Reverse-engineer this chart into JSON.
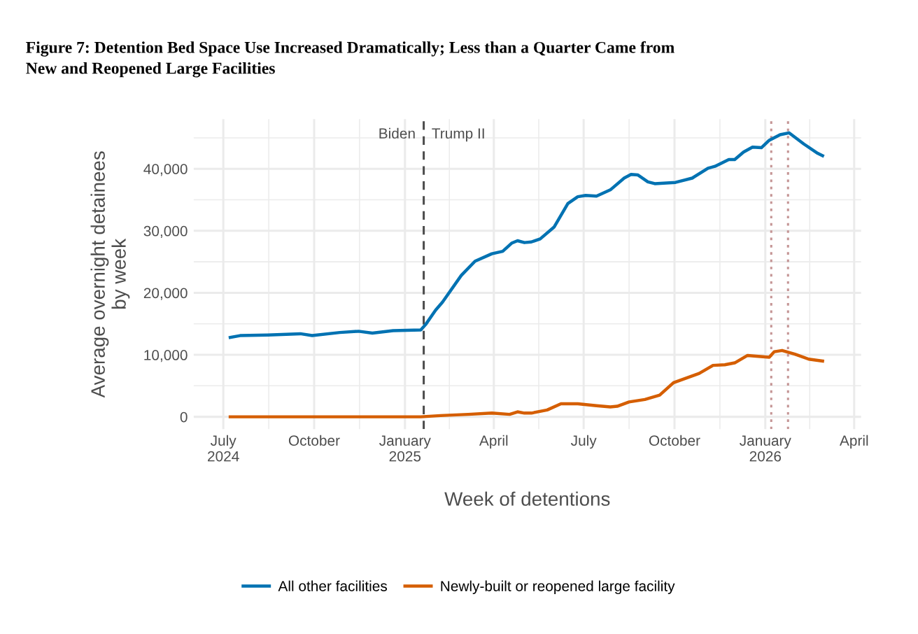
{
  "chart_data": {
    "type": "line",
    "title": "Figure 7: Detention Bed Space Use Increased Dramatically; Less than a Quarter Came from\nNew and Reopened Large Facilities",
    "xlabel": "Week of detentions",
    "ylabel": "Average overnight detainees\nby week",
    "xlim": [
      "2024-06-01",
      "2026-04-08"
    ],
    "xticks": [
      {
        "value": "2024-07-01",
        "label": "July\n2024"
      },
      {
        "value": "2024-10-01",
        "label": "October"
      },
      {
        "value": "2025-01-01",
        "label": "January\n2025"
      },
      {
        "value": "2025-04-01",
        "label": "April"
      },
      {
        "value": "2025-07-01",
        "label": "July"
      },
      {
        "value": "2025-10-01",
        "label": "October"
      },
      {
        "value": "2026-01-01",
        "label": "January\n2026"
      },
      {
        "value": "2026-04-01",
        "label": "April"
      }
    ],
    "ylim": [
      -2000,
      48000
    ],
    "yticks": [
      {
        "value": 0,
        "label": "0"
      },
      {
        "value": 10000,
        "label": "10,000"
      },
      {
        "value": 20000,
        "label": "20,000"
      },
      {
        "value": 30000,
        "label": "30,000"
      },
      {
        "value": 40000,
        "label": "40,000"
      }
    ],
    "grid": true,
    "legend": "bottom",
    "line_style": "solid",
    "marker": "none",
    "ref_lines": [
      {
        "axis": "x",
        "value": "2025-01-20",
        "color": "#4d4d4d",
        "line_style": "dashed"
      },
      {
        "axis": "x",
        "value": "2026-01-07",
        "color": "#c49494",
        "line_style": "dotted"
      },
      {
        "axis": "x",
        "value": "2026-01-24",
        "color": "#c49494",
        "line_style": "dotted"
      }
    ],
    "annotations": [
      "Biden",
      "Trump II"
    ],
    "series": [
      {
        "name": "All other facilities",
        "color": "#0072b2",
        "x": [
          "2024-07-08",
          "2024-07-18",
          "2024-08-15",
          "2024-09-17",
          "2024-09-29",
          "2024-10-27",
          "2024-11-15",
          "2024-11-29",
          "2024-12-20",
          "2025-01-17",
          "2025-01-22",
          "2025-02-01",
          "2025-02-08",
          "2025-02-27",
          "2025-03-13",
          "2025-03-30",
          "2025-04-10",
          "2025-04-19",
          "2025-04-25",
          "2025-05-02",
          "2025-05-09",
          "2025-05-18",
          "2025-06-01",
          "2025-06-15",
          "2025-06-25",
          "2025-07-03",
          "2025-07-14",
          "2025-07-28",
          "2025-08-11",
          "2025-08-18",
          "2025-08-25",
          "2025-09-04",
          "2025-09-11",
          "2025-10-02",
          "2025-10-19",
          "2025-11-04",
          "2025-11-11",
          "2025-11-25",
          "2025-12-01",
          "2025-12-10",
          "2025-12-19",
          "2025-12-28",
          "2026-01-05",
          "2026-01-16",
          "2026-01-25",
          "2026-02-09",
          "2026-02-23",
          "2026-02-28"
        ],
        "values": [
          12800,
          13100,
          13200,
          13400,
          13100,
          13600,
          13800,
          13500,
          13900,
          14000,
          14900,
          17200,
          18500,
          22800,
          25100,
          26300,
          26700,
          28000,
          28400,
          28100,
          28200,
          28700,
          30600,
          34400,
          35500,
          35700,
          35600,
          36600,
          38500,
          39100,
          39000,
          37900,
          37600,
          37800,
          38500,
          40100,
          40400,
          41500,
          41500,
          42700,
          43500,
          43400,
          44600,
          45500,
          45800,
          44000,
          42500,
          42100
        ]
      },
      {
        "name": "Newly-built or reopened large facility",
        "color": "#d55e00",
        "x": [
          "2024-07-08",
          "2024-10-09",
          "2025-01-17",
          "2025-02-06",
          "2025-03-06",
          "2025-03-30",
          "2025-04-17",
          "2025-04-25",
          "2025-05-02",
          "2025-05-09",
          "2025-05-25",
          "2025-06-08",
          "2025-06-25",
          "2025-07-14",
          "2025-07-28",
          "2025-08-04",
          "2025-08-16",
          "2025-09-01",
          "2025-09-16",
          "2025-09-30",
          "2025-10-26",
          "2025-11-09",
          "2025-11-21",
          "2025-12-01",
          "2025-12-14",
          "2026-01-05",
          "2026-01-10",
          "2026-01-18",
          "2026-01-31",
          "2026-02-14",
          "2026-02-28"
        ],
        "values": [
          0,
          0,
          0,
          200,
          400,
          600,
          400,
          800,
          600,
          600,
          1100,
          2100,
          2100,
          1800,
          1600,
          1700,
          2400,
          2800,
          3500,
          5500,
          7000,
          8300,
          8400,
          8700,
          9900,
          9600,
          10500,
          10700,
          10100,
          9300,
          9000
        ]
      }
    ]
  }
}
